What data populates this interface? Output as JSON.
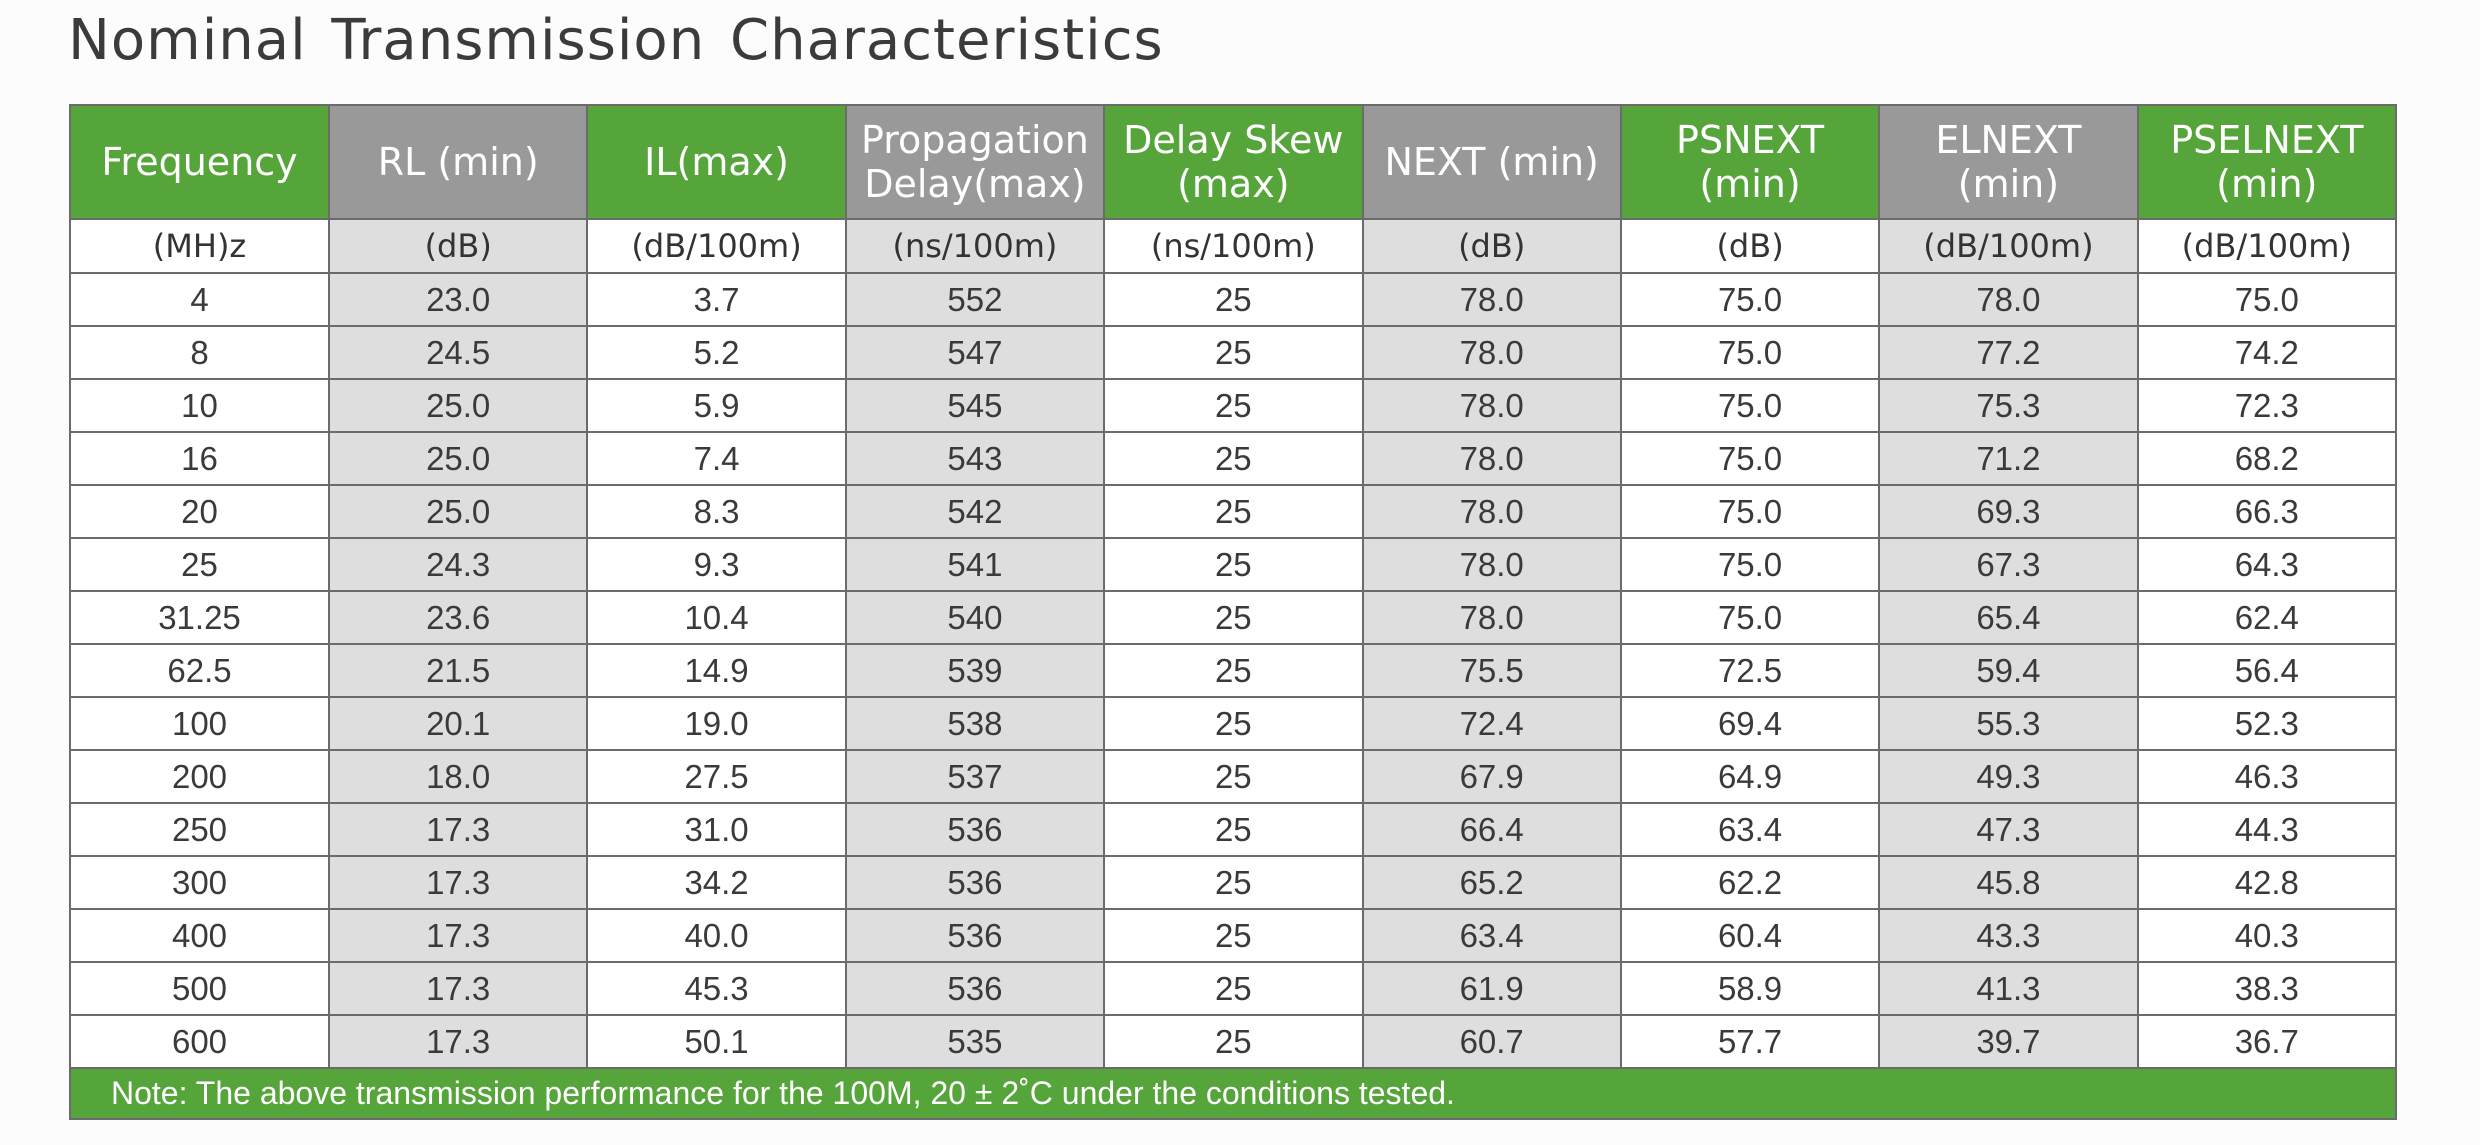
{
  "title": "Nominal Transmission Characteristics",
  "colors": {
    "green": "#55a53a",
    "gray": "#999999",
    "light_gray": "#dedede",
    "white": "#ffffff"
  },
  "columns": [
    {
      "line1": "Frequency",
      "line2": "",
      "unit": "(MH)z",
      "shade": "green"
    },
    {
      "line1": "RL (min)",
      "line2": "",
      "unit": "(dB)",
      "shade": "gray"
    },
    {
      "line1": "IL(max)",
      "line2": "",
      "unit": "(dB/100m)",
      "shade": "green"
    },
    {
      "line1": "Propagation",
      "line2": "Delay(max)",
      "unit": "(ns/100m)",
      "shade": "gray"
    },
    {
      "line1": "Delay Skew",
      "line2": "(max)",
      "unit": "(ns/100m)",
      "shade": "green"
    },
    {
      "line1": "NEXT (min)",
      "line2": "",
      "unit": "(dB)",
      "shade": "gray"
    },
    {
      "line1": "PSNEXT",
      "line2": "(min)",
      "unit": "(dB)",
      "shade": "green"
    },
    {
      "line1": "ELNEXT",
      "line2": "(min)",
      "unit": "(dB/100m)",
      "shade": "gray"
    },
    {
      "line1": "PSELNEXT",
      "line2": "(min)",
      "unit": "(dB/100m)",
      "shade": "green"
    }
  ],
  "rows": [
    [
      "4",
      "23.0",
      "3.7",
      "552",
      "25",
      "78.0",
      "75.0",
      "78.0",
      "75.0"
    ],
    [
      "8",
      "24.5",
      "5.2",
      "547",
      "25",
      "78.0",
      "75.0",
      "77.2",
      "74.2"
    ],
    [
      "10",
      "25.0",
      "5.9",
      "545",
      "25",
      "78.0",
      "75.0",
      "75.3",
      "72.3"
    ],
    [
      "16",
      "25.0",
      "7.4",
      "543",
      "25",
      "78.0",
      "75.0",
      "71.2",
      "68.2"
    ],
    [
      "20",
      "25.0",
      "8.3",
      "542",
      "25",
      "78.0",
      "75.0",
      "69.3",
      "66.3"
    ],
    [
      "25",
      "24.3",
      "9.3",
      "541",
      "25",
      "78.0",
      "75.0",
      "67.3",
      "64.3"
    ],
    [
      "31.25",
      "23.6",
      "10.4",
      "540",
      "25",
      "78.0",
      "75.0",
      "65.4",
      "62.4"
    ],
    [
      "62.5",
      "21.5",
      "14.9",
      "539",
      "25",
      "75.5",
      "72.5",
      "59.4",
      "56.4"
    ],
    [
      "100",
      "20.1",
      "19.0",
      "538",
      "25",
      "72.4",
      "69.4",
      "55.3",
      "52.3"
    ],
    [
      "200",
      "18.0",
      "27.5",
      "537",
      "25",
      "67.9",
      "64.9",
      "49.3",
      "46.3"
    ],
    [
      "250",
      "17.3",
      "31.0",
      "536",
      "25",
      "66.4",
      "63.4",
      "47.3",
      "44.3"
    ],
    [
      "300",
      "17.3",
      "34.2",
      "536",
      "25",
      "65.2",
      "62.2",
      "45.8",
      "42.8"
    ],
    [
      "400",
      "17.3",
      "40.0",
      "536",
      "25",
      "63.4",
      "60.4",
      "43.3",
      "40.3"
    ],
    [
      "500",
      "17.3",
      "45.3",
      "536",
      "25",
      "61.9",
      "58.9",
      "41.3",
      "38.3"
    ],
    [
      "600",
      "17.3",
      "50.1",
      "535",
      "25",
      "60.7",
      "57.7",
      "39.7",
      "36.7"
    ]
  ],
  "note": "Note: The above transmission performance for the 100M, 20 ± 2˚C under the conditions tested."
}
